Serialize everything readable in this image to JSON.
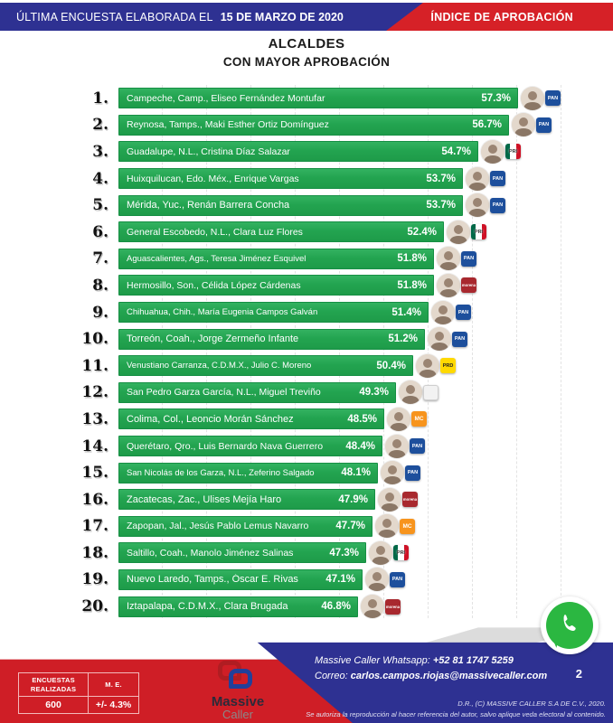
{
  "header": {
    "left_label": "ÚLTIMA ENCUESTA ELABORADA EL",
    "left_date": "15 DE MARZO DE 2020",
    "right_label": "ÍNDICE DE APROBACIÓN"
  },
  "title": {
    "line1": "ALCALDES",
    "line2": "CON MAYOR APROBACIÓN"
  },
  "chart_data": {
    "type": "bar",
    "orientation": "horizontal",
    "value_suffix": "%",
    "axis_min": 31,
    "axis_max": 58.5,
    "grid": "vertical-dashed",
    "bar_color": "#23a450",
    "items": [
      {
        "rank": "1.",
        "label": "Campeche, Camp., Eliseo Fernández Montufar",
        "value": 57.3,
        "value_label": "57.3%",
        "party": "PAN"
      },
      {
        "rank": "2.",
        "label": "Reynosa, Tamps., Maki Esther Ortiz Domínguez",
        "value": 56.7,
        "value_label": "56.7%",
        "party": "PAN"
      },
      {
        "rank": "3.",
        "label": "Guadalupe, N.L., Cristina Díaz Salazar",
        "value": 54.7,
        "value_label": "54.7%",
        "party": "PRI"
      },
      {
        "rank": "4.",
        "label": "Huixquilucan, Edo. Méx., Enrique Vargas",
        "value": 53.7,
        "value_label": "53.7%",
        "party": "PAN"
      },
      {
        "rank": "5.",
        "label": "Mérida, Yuc., Renán Barrera Concha",
        "value": 53.7,
        "value_label": "53.7%",
        "party": "PAN"
      },
      {
        "rank": "6.",
        "label": "General Escobedo, N.L., Clara Luz Flores",
        "value": 52.4,
        "value_label": "52.4%",
        "party": "PRI"
      },
      {
        "rank": "7.",
        "label": "Aguascalientes, Ags., Teresa Jiménez Esquivel",
        "value": 51.8,
        "value_label": "51.8%",
        "party": "PAN"
      },
      {
        "rank": "8.",
        "label": "Hermosillo, Son., Célida López Cárdenas",
        "value": 51.8,
        "value_label": "51.8%",
        "party": "MORENA"
      },
      {
        "rank": "9.",
        "label": "Chihuahua, Chih., María Eugenia Campos Galván",
        "value": 51.4,
        "value_label": "51.4%",
        "party": "PAN"
      },
      {
        "rank": "10.",
        "label": "Torreón, Coah., Jorge Zermeño Infante",
        "value": 51.2,
        "value_label": "51.2%",
        "party": "PAN"
      },
      {
        "rank": "11.",
        "label": "Venustiano Carranza, C.D.M.X., Julio C. Moreno",
        "value": 50.4,
        "value_label": "50.4%",
        "party": "PRD"
      },
      {
        "rank": "12.",
        "label": "San Pedro Garza García, N.L., Miguel Treviño",
        "value": 49.3,
        "value_label": "49.3%",
        "party": "IND"
      },
      {
        "rank": "13.",
        "label": "Colima, Col., Leoncio Morán Sánchez",
        "value": 48.5,
        "value_label": "48.5%",
        "party": "MC"
      },
      {
        "rank": "14.",
        "label": "Querétaro, Qro., Luis Bernardo Nava Guerrero",
        "value": 48.4,
        "value_label": "48.4%",
        "party": "PAN"
      },
      {
        "rank": "15.",
        "label": "San Nicolás de los Garza, N.L., Zeferino Salgado",
        "value": 48.1,
        "value_label": "48.1%",
        "party": "PAN"
      },
      {
        "rank": "16.",
        "label": "Zacatecas, Zac., Ulises Mejía Haro",
        "value": 47.9,
        "value_label": "47.9%",
        "party": "MORENA"
      },
      {
        "rank": "17.",
        "label": "Zapopan, Jal., Jesús Pablo Lemus Navarro",
        "value": 47.7,
        "value_label": "47.7%",
        "party": "MC"
      },
      {
        "rank": "18.",
        "label": "Saltillo, Coah., Manolo Jiménez Salinas",
        "value": 47.3,
        "value_label": "47.3%",
        "party": "PRI"
      },
      {
        "rank": "19.",
        "label": "Nuevo Laredo, Tamps., Óscar E. Rivas",
        "value": 47.1,
        "value_label": "47.1%",
        "party": "PAN"
      },
      {
        "rank": "20.",
        "label": "Iztapalapa, C.D.M.X., Clara Brugada",
        "value": 46.8,
        "value_label": "46.8%",
        "party": "MORENA"
      }
    ],
    "party_badges": {
      "PAN": "PAN",
      "PRI": "PRI",
      "MORENA": "morena",
      "PRD": "PRD",
      "MC": "MC",
      "IND": ""
    }
  },
  "footer": {
    "stats_table": {
      "col1_header": "ENCUESTAS REALIZADAS",
      "col2_header": "M. E.",
      "col1_value": "600",
      "col2_value": "+/- 4.3%"
    },
    "logo": {
      "line1": "Massive",
      "line2": "Caller"
    },
    "whatsapp_label": "Massive Caller Whatsapp:",
    "whatsapp_number": "+52  81 1747 5259",
    "email_label": "Correo:",
    "email": "carlos.campos.riojas@massivecaller.com",
    "page_number": "2",
    "copyright": "D.R., (C) MASSIVE CALLER S.A DE C.V., 2020.",
    "disclaimer": "Se autoriza la reproducción al hacer referencia del autor, salvo aplique veda electoral al contenido."
  },
  "colors": {
    "banner_blue": "#2e3192",
    "banner_red": "#d62127",
    "bar_green": "#23a450",
    "footer_red": "#cf1e26",
    "whatsapp_green": "#2bb741"
  }
}
